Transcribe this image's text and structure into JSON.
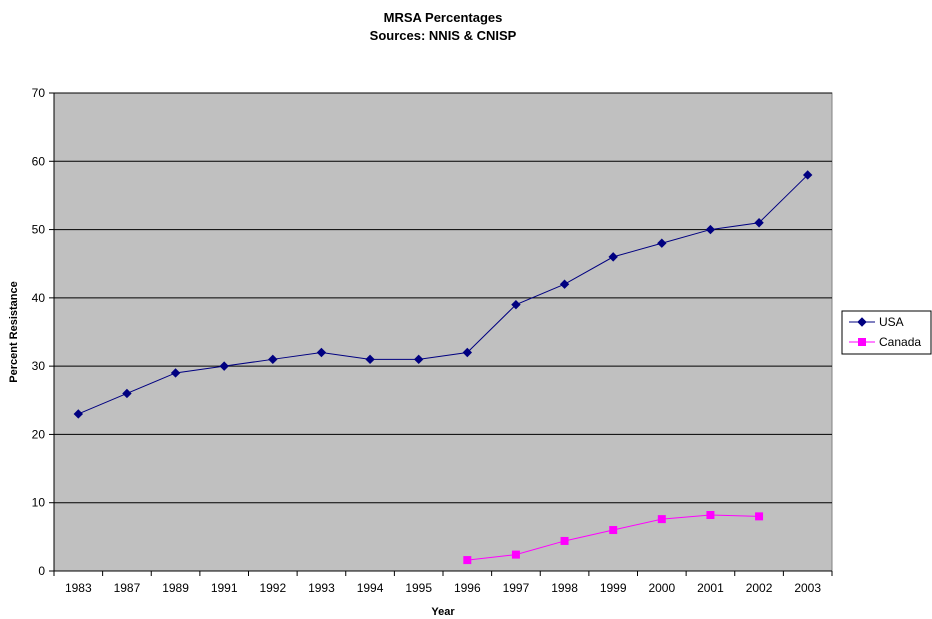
{
  "chart_data": {
    "type": "line",
    "title": "MRSA Percentages",
    "subtitle": "Sources:  NNIS & CNISP",
    "xlabel": "Year",
    "ylabel": "Percent Resistance",
    "categories": [
      "1983",
      "1987",
      "1989",
      "1991",
      "1992",
      "1993",
      "1994",
      "1995",
      "1996",
      "1997",
      "1998",
      "1999",
      "2000",
      "2001",
      "2002",
      "2003"
    ],
    "ylim": [
      0,
      70
    ],
    "yticks": [
      "0",
      "10",
      "20",
      "30",
      "40",
      "50",
      "60",
      "70"
    ],
    "grid": true,
    "legend_position": "right",
    "series": [
      {
        "name": "USA",
        "color": "#000080",
        "marker": "diamond",
        "values": [
          23,
          26,
          29,
          30,
          31,
          32,
          31,
          31,
          32,
          39,
          42,
          46,
          48,
          50,
          51,
          58
        ]
      },
      {
        "name": "Canada",
        "color": "#FF00FF",
        "marker": "square",
        "values": [
          null,
          null,
          null,
          null,
          null,
          null,
          null,
          null,
          1.6,
          2.4,
          4.4,
          6.0,
          7.6,
          8.2,
          8.0,
          null
        ]
      }
    ],
    "plot_background": "#C0C0C0"
  }
}
